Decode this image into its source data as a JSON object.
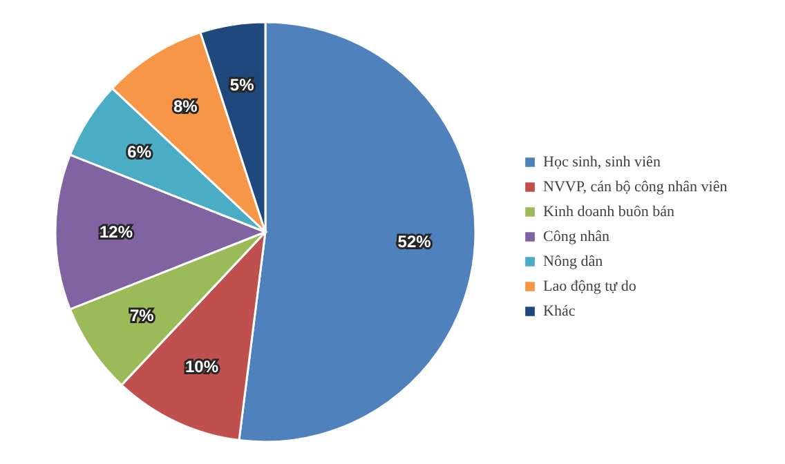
{
  "chart_data": {
    "type": "pie",
    "categories": [
      "Học sinh, sinh viên",
      "NVVP, cán bộ công nhân viên",
      "Kinh doanh buôn bán",
      "Công nhân",
      "Nông dân",
      "Lao động tự do",
      "Khác"
    ],
    "values": [
      52,
      10,
      7,
      12,
      6,
      8,
      5
    ],
    "colors": [
      "#4f81bd",
      "#c0504d",
      "#9bbb59",
      "#8064a2",
      "#4bacc6",
      "#f79646",
      "#1f497d"
    ],
    "value_labels": [
      "52%",
      "10%",
      "7%",
      "12%",
      "6%",
      "8%",
      "5%"
    ],
    "legend": "right"
  }
}
